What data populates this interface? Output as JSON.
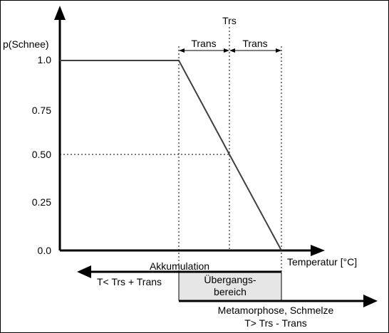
{
  "chart_data": {
    "type": "line",
    "y_axis_label": "p(Schnee)",
    "x_axis_label": "Temperatur [°C]",
    "y_ticks": [
      "1.0",
      "0.75",
      "0.50",
      "0.25",
      "0.0"
    ],
    "y_tick_values": [
      1.0,
      0.75,
      0.5,
      0.25,
      0.0
    ],
    "series": [
      {
        "points": [
          [
            "",
            1.0
          ],
          [
            "Trs - Trans",
            1.0
          ],
          [
            "Trs",
            0.5
          ],
          [
            "Trs + Trans",
            0.0
          ]
        ]
      }
    ],
    "annotations": {
      "trs_label": "Trs",
      "trans_left": "Trans",
      "trans_right": "Trans",
      "accumulation_label": "Akkumulation",
      "accumulation_condition": "T< Trs + Trans",
      "transition_line1": "Übergangs-",
      "transition_line2": "bereich",
      "metamorphosis_label": "Metamorphose, Schmelze",
      "metamorphosis_condition": "T> Trs - Trans"
    }
  },
  "colors": {
    "axis": "#000000",
    "curve": "#404040",
    "transition_fill": "#e6e6e6"
  }
}
